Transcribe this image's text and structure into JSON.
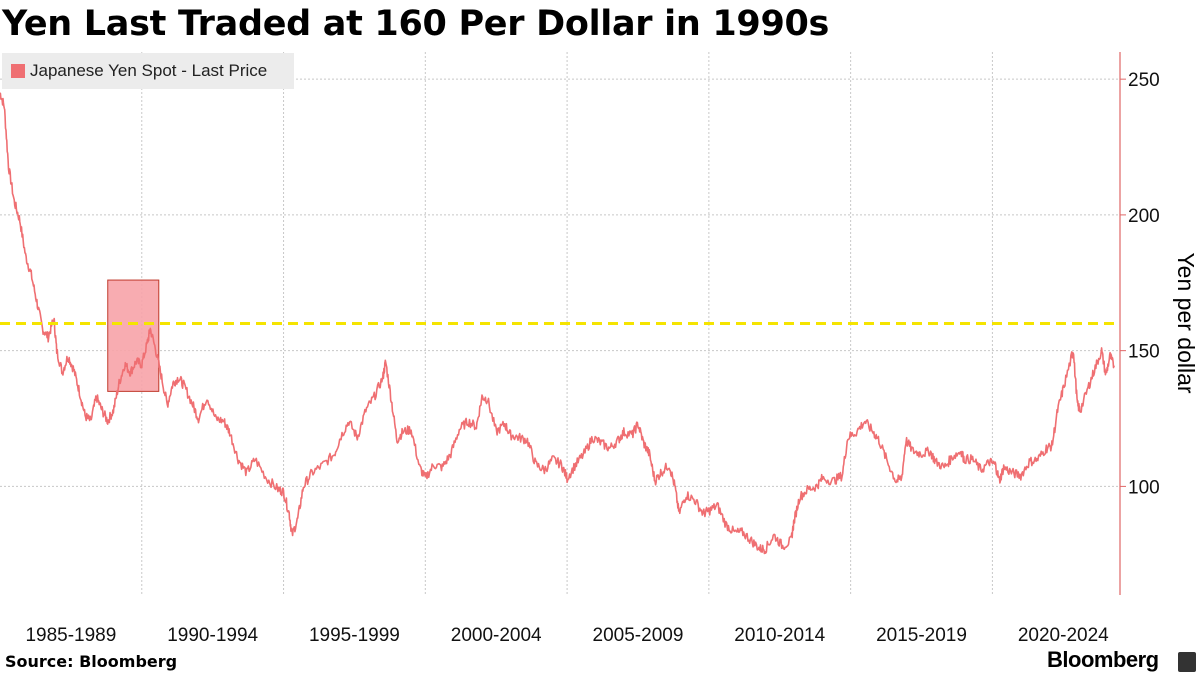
{
  "title": "Yen Last Traded at 160 Per Dollar in 1990s",
  "source": "Source: Bloomberg",
  "brand": "Bloomberg",
  "colors": {
    "series": "#ef6f72",
    "reference_line": "#f5e400",
    "highlight": "#f7a3a8",
    "axis": "#e06666"
  },
  "chart_data": {
    "type": "line",
    "title": "Yen Last Traded at 160 Per Dollar in 1990s",
    "ylabel": "Yen per dollar",
    "ylim": [
      60,
      260
    ],
    "xlim": [
      1985.0,
      2024.5
    ],
    "yticks": [
      100,
      150,
      200,
      250
    ],
    "x_tick_labels": [
      "1985-1989",
      "1990-1994",
      "1995-1999",
      "2000-2004",
      "2005-2009",
      "2010-2014",
      "2015-2019",
      "2020-2024"
    ],
    "legend": {
      "position": "top-left",
      "entries": [
        "Japanese Yen Spot - Last Price"
      ]
    },
    "grid": true,
    "y_axis_side": "right",
    "reference_line": {
      "y": 160,
      "style": "dashed"
    },
    "highlight_region": {
      "x_start": 1988.8,
      "x_end": 1990.6,
      "y_start": 135,
      "y_end": 176
    },
    "series": [
      {
        "name": "Japanese Yen Spot - Last Price",
        "points": [
          [
            1985.0,
            245
          ],
          [
            1985.15,
            240
          ],
          [
            1985.3,
            218
          ],
          [
            1985.5,
            205
          ],
          [
            1985.7,
            198
          ],
          [
            1985.9,
            185
          ],
          [
            1986.1,
            178
          ],
          [
            1986.3,
            168
          ],
          [
            1986.5,
            158
          ],
          [
            1986.7,
            155
          ],
          [
            1986.9,
            162
          ],
          [
            1987.0,
            150
          ],
          [
            1987.2,
            142
          ],
          [
            1987.4,
            148
          ],
          [
            1987.6,
            143
          ],
          [
            1987.8,
            135
          ],
          [
            1988.0,
            126
          ],
          [
            1988.2,
            124
          ],
          [
            1988.4,
            133
          ],
          [
            1988.6,
            128
          ],
          [
            1988.8,
            124
          ],
          [
            1989.0,
            128
          ],
          [
            1989.2,
            138
          ],
          [
            1989.4,
            145
          ],
          [
            1989.6,
            142
          ],
          [
            1989.8,
            146
          ],
          [
            1990.0,
            145
          ],
          [
            1990.2,
            153
          ],
          [
            1990.3,
            158
          ],
          [
            1990.5,
            150
          ],
          [
            1990.7,
            140
          ],
          [
            1990.9,
            130
          ],
          [
            1991.1,
            138
          ],
          [
            1991.3,
            140
          ],
          [
            1991.5,
            137
          ],
          [
            1991.8,
            130
          ],
          [
            1992.0,
            125
          ],
          [
            1992.3,
            133
          ],
          [
            1992.6,
            125
          ],
          [
            1992.9,
            124
          ],
          [
            1993.1,
            120
          ],
          [
            1993.4,
            110
          ],
          [
            1993.7,
            105
          ],
          [
            1994.0,
            110
          ],
          [
            1994.4,
            103
          ],
          [
            1994.8,
            99
          ],
          [
            1995.0,
            98
          ],
          [
            1995.2,
            90
          ],
          [
            1995.3,
            82
          ],
          [
            1995.5,
            88
          ],
          [
            1995.7,
            100
          ],
          [
            1996.0,
            105
          ],
          [
            1996.4,
            108
          ],
          [
            1996.8,
            112
          ],
          [
            1997.0,
            118
          ],
          [
            1997.3,
            124
          ],
          [
            1997.6,
            118
          ],
          [
            1997.9,
            128
          ],
          [
            1998.2,
            133
          ],
          [
            1998.5,
            140
          ],
          [
            1998.6,
            146
          ],
          [
            1998.8,
            132
          ],
          [
            1999.0,
            117
          ],
          [
            1999.2,
            120
          ],
          [
            1999.5,
            121
          ],
          [
            1999.8,
            107
          ],
          [
            2000.0,
            103
          ],
          [
            2000.3,
            108
          ],
          [
            2000.6,
            107
          ],
          [
            2000.9,
            112
          ],
          [
            2001.2,
            121
          ],
          [
            2001.5,
            124
          ],
          [
            2001.8,
            122
          ],
          [
            2002.0,
            133
          ],
          [
            2002.2,
            132
          ],
          [
            2002.5,
            120
          ],
          [
            2002.8,
            123
          ],
          [
            2003.0,
            119
          ],
          [
            2003.3,
            118
          ],
          [
            2003.6,
            117
          ],
          [
            2003.9,
            108
          ],
          [
            2004.2,
            106
          ],
          [
            2004.5,
            110
          ],
          [
            2004.8,
            108
          ],
          [
            2005.0,
            103
          ],
          [
            2005.3,
            108
          ],
          [
            2005.6,
            112
          ],
          [
            2005.9,
            118
          ],
          [
            2006.2,
            116
          ],
          [
            2006.5,
            114
          ],
          [
            2006.8,
            117
          ],
          [
            2007.0,
            120
          ],
          [
            2007.3,
            119
          ],
          [
            2007.5,
            123
          ],
          [
            2007.7,
            116
          ],
          [
            2007.9,
            112
          ],
          [
            2008.1,
            102
          ],
          [
            2008.3,
            105
          ],
          [
            2008.6,
            108
          ],
          [
            2008.8,
            100
          ],
          [
            2008.95,
            90
          ],
          [
            2009.2,
            97
          ],
          [
            2009.5,
            95
          ],
          [
            2009.8,
            90
          ],
          [
            2010.0,
            91
          ],
          [
            2010.3,
            93
          ],
          [
            2010.6,
            86
          ],
          [
            2010.9,
            83
          ],
          [
            2011.2,
            83
          ],
          [
            2011.5,
            80
          ],
          [
            2011.8,
            77
          ],
          [
            2012.0,
            77
          ],
          [
            2012.3,
            82
          ],
          [
            2012.6,
            78
          ],
          [
            2012.9,
            80
          ],
          [
            2013.0,
            87
          ],
          [
            2013.2,
            96
          ],
          [
            2013.5,
            99
          ],
          [
            2013.8,
            100
          ],
          [
            2014.0,
            103
          ],
          [
            2014.4,
            102
          ],
          [
            2014.7,
            104
          ],
          [
            2014.9,
            118
          ],
          [
            2015.2,
            120
          ],
          [
            2015.5,
            124
          ],
          [
            2015.8,
            120
          ],
          [
            2016.0,
            117
          ],
          [
            2016.3,
            109
          ],
          [
            2016.6,
            102
          ],
          [
            2016.8,
            103
          ],
          [
            2016.95,
            117
          ],
          [
            2017.2,
            113
          ],
          [
            2017.5,
            112
          ],
          [
            2017.8,
            113
          ],
          [
            2018.0,
            109
          ],
          [
            2018.3,
            107
          ],
          [
            2018.6,
            111
          ],
          [
            2018.9,
            113
          ],
          [
            2019.0,
            110
          ],
          [
            2019.3,
            110
          ],
          [
            2019.6,
            106
          ],
          [
            2019.9,
            109
          ],
          [
            2020.1,
            108
          ],
          [
            2020.25,
            102
          ],
          [
            2020.4,
            107
          ],
          [
            2020.7,
            105
          ],
          [
            2021.0,
            104
          ],
          [
            2021.3,
            109
          ],
          [
            2021.6,
            110
          ],
          [
            2021.9,
            114
          ],
          [
            2022.1,
            115
          ],
          [
            2022.3,
            128
          ],
          [
            2022.5,
            136
          ],
          [
            2022.8,
            148
          ],
          [
            2022.85,
            150
          ],
          [
            2023.0,
            130
          ],
          [
            2023.1,
            128
          ],
          [
            2023.4,
            137
          ],
          [
            2023.6,
            143
          ],
          [
            2023.85,
            150
          ],
          [
            2024.0,
            141
          ],
          [
            2024.15,
            148
          ],
          [
            2024.3,
            144
          ]
        ]
      }
    ]
  }
}
